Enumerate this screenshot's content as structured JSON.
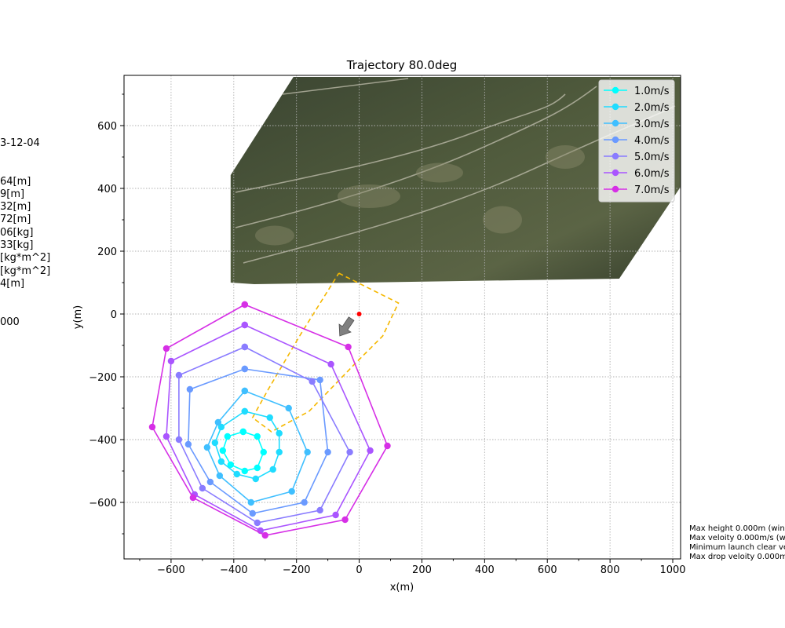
{
  "chart_data": {
    "type": "line",
    "title": "Trajectory 80.0deg",
    "xlabel": "x(m)",
    "ylabel": "y(m)",
    "xlim": [
      -750,
      1025
    ],
    "ylim": [
      -780,
      760
    ],
    "xticks": [
      -600,
      -400,
      -200,
      0,
      200,
      400,
      600,
      800,
      1000
    ],
    "yticks": [
      -600,
      -400,
      -200,
      0,
      200,
      400,
      600
    ],
    "grid": true,
    "legend_position": "top-right",
    "launch_point": [
      0,
      0
    ],
    "wind_arrow": {
      "from": [
        -25,
        -15
      ],
      "to": [
        -62,
        -70
      ]
    },
    "landing_boundary": {
      "color": "#f5b800",
      "points": [
        [
          -65,
          130
        ],
        [
          125,
          35
        ],
        [
          75,
          -70
        ],
        [
          -15,
          -160
        ],
        [
          -160,
          -310
        ],
        [
          -280,
          -375
        ],
        [
          -340,
          -330
        ],
        [
          -290,
          -240
        ],
        [
          -190,
          -70
        ],
        [
          -65,
          130
        ]
      ]
    },
    "map_image": {
      "bounds_x": [
        -410,
        1025
      ],
      "bounds_y": [
        100,
        755
      ]
    },
    "series": [
      {
        "name": "1.0m/s",
        "color": "#00ffff",
        "points": [
          [
            -370,
            -375
          ],
          [
            -325,
            -390
          ],
          [
            -305,
            -440
          ],
          [
            -325,
            -490
          ],
          [
            -365,
            -500
          ],
          [
            -410,
            -480
          ],
          [
            -435,
            -435
          ],
          [
            -420,
            -390
          ],
          [
            -370,
            -375
          ]
        ]
      },
      {
        "name": "2.0m/s",
        "color": "#1fdcff",
        "points": [
          [
            -365,
            -310
          ],
          [
            -285,
            -330
          ],
          [
            -255,
            -380
          ],
          [
            -255,
            -440
          ],
          [
            -275,
            -495
          ],
          [
            -330,
            -525
          ],
          [
            -390,
            -510
          ],
          [
            -440,
            -470
          ],
          [
            -460,
            -410
          ],
          [
            -440,
            -360
          ],
          [
            -365,
            -310
          ]
        ]
      },
      {
        "name": "3.0m/s",
        "color": "#3fbfff",
        "points": [
          [
            -365,
            -245
          ],
          [
            -225,
            -300
          ],
          [
            -165,
            -440
          ],
          [
            -215,
            -565
          ],
          [
            -345,
            -600
          ],
          [
            -445,
            -515
          ],
          [
            -485,
            -425
          ],
          [
            -450,
            -345
          ],
          [
            -365,
            -245
          ]
        ]
      },
      {
        "name": "4.0m/s",
        "color": "#6a9aff",
        "points": [
          [
            -365,
            -175
          ],
          [
            -125,
            -210
          ],
          [
            -100,
            -440
          ],
          [
            -175,
            -600
          ],
          [
            -340,
            -635
          ],
          [
            -475,
            -535
          ],
          [
            -545,
            -415
          ],
          [
            -540,
            -240
          ],
          [
            -365,
            -175
          ]
        ]
      },
      {
        "name": "5.0m/s",
        "color": "#8a7cff",
        "points": [
          [
            -365,
            -105
          ],
          [
            -150,
            -215
          ],
          [
            -30,
            -440
          ],
          [
            -125,
            -625
          ],
          [
            -325,
            -665
          ],
          [
            -500,
            -555
          ],
          [
            -575,
            -400
          ],
          [
            -575,
            -195
          ],
          [
            -365,
            -105
          ]
        ]
      },
      {
        "name": "6.0m/s",
        "color": "#aa55ff",
        "points": [
          [
            -365,
            -35
          ],
          [
            -90,
            -160
          ],
          [
            35,
            -435
          ],
          [
            -75,
            -640
          ],
          [
            -315,
            -690
          ],
          [
            -525,
            -575
          ],
          [
            -615,
            -390
          ],
          [
            -600,
            -150
          ],
          [
            -365,
            -35
          ]
        ]
      },
      {
        "name": "7.0m/s",
        "color": "#d62fe6",
        "points": [
          [
            -365,
            30
          ],
          [
            -35,
            -105
          ],
          [
            90,
            -420
          ],
          [
            -45,
            -655
          ],
          [
            -300,
            -705
          ],
          [
            -530,
            -585
          ],
          [
            -660,
            -360
          ],
          [
            -615,
            -110
          ],
          [
            -365,
            30
          ]
        ]
      }
    ]
  },
  "left_info": [
    "3-12-04",
    "64[m]",
    "9[m]",
    "32[m]",
    "72[m]",
    "06[kg]",
    "33[kg]",
    "[kg*m^2]",
    "[kg*m^2]",
    "4[m]",
    "000"
  ],
  "right_info": [
    "Max height 0.000m (wind",
    "Max veloity 0.000m/s (wi",
    "Minimum launch clear ve",
    "Max drop veloity 0.000m/"
  ]
}
